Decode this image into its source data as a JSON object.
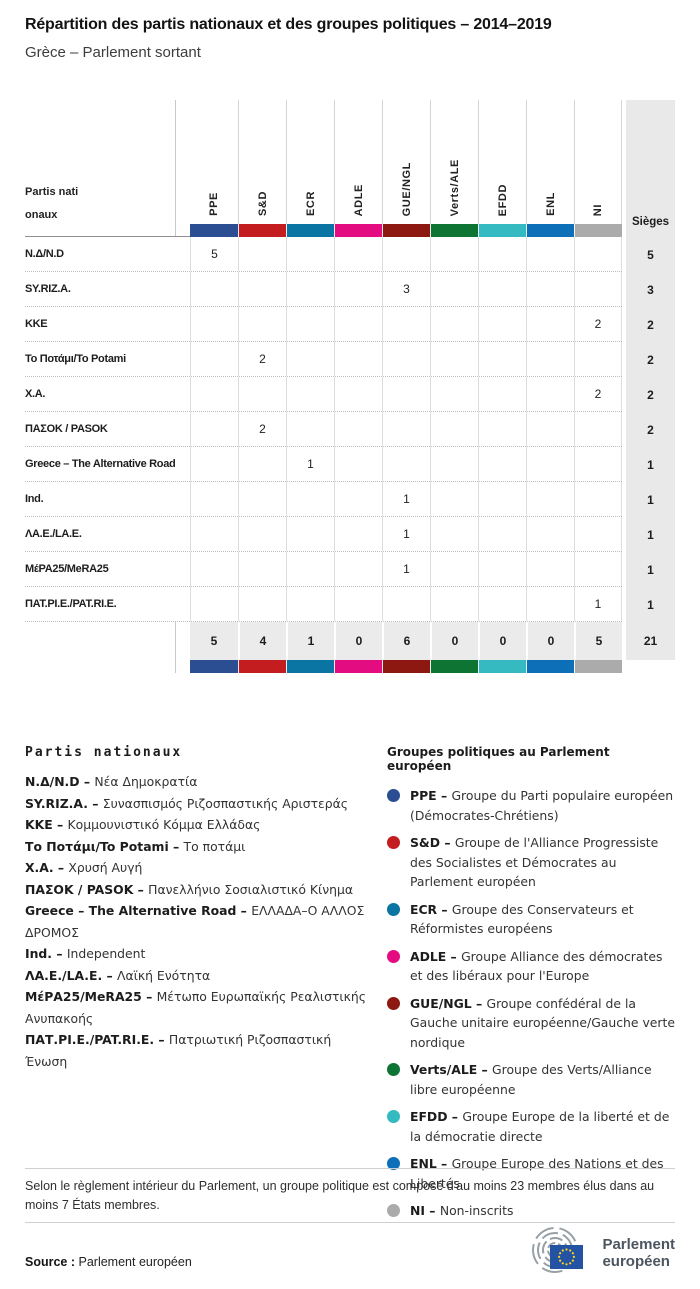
{
  "title": "Répartition des partis nationaux et des groupes politiques – 2014–2019",
  "subtitle": "Grèce – Parlement sortant",
  "chart_data": {
    "type": "table",
    "title": "Répartition des partis nationaux et des groupes politiques – 2014–2019",
    "subtitle": "Grèce – Parlement sortant",
    "corner_header": "Partis nationaux",
    "seats_header": "Sièges",
    "group_columns": [
      {
        "label": "PPE",
        "color": "#2b4d91"
      },
      {
        "label": "S&D",
        "color": "#c31d20"
      },
      {
        "label": "ECR",
        "color": "#0a74a2"
      },
      {
        "label": "ADLE",
        "color": "#e30c80"
      },
      {
        "label": "GUE/NGL",
        "color": "#8d1812"
      },
      {
        "label": "Verts/ALE",
        "color": "#0e7433"
      },
      {
        "label": "EFDD",
        "color": "#35bac1"
      },
      {
        "label": "ENL",
        "color": "#0c6fb7"
      },
      {
        "label": "NI",
        "color": "#ababab"
      }
    ],
    "rows": [
      {
        "party": "Ν.Δ/N.D",
        "values": [
          "5",
          "",
          "",
          "",
          "",
          "",
          "",
          "",
          ""
        ],
        "seats": "5"
      },
      {
        "party": "SY.RIZ.A.",
        "values": [
          "",
          "",
          "",
          "",
          "3",
          "",
          "",
          "",
          ""
        ],
        "seats": "3"
      },
      {
        "party": "KKE",
        "values": [
          "",
          "",
          "",
          "",
          "",
          "",
          "",
          "",
          "2"
        ],
        "seats": "2"
      },
      {
        "party": "Το Ποτάμι/To Potami",
        "values": [
          "",
          "2",
          "",
          "",
          "",
          "",
          "",
          "",
          ""
        ],
        "seats": "2"
      },
      {
        "party": "Χ.Α.",
        "values": [
          "",
          "",
          "",
          "",
          "",
          "",
          "",
          "",
          "2"
        ],
        "seats": "2"
      },
      {
        "party": "ΠΑΣΟΚ / PASOK",
        "values": [
          "",
          "2",
          "",
          "",
          "",
          "",
          "",
          "",
          ""
        ],
        "seats": "2"
      },
      {
        "party": "Greece – The Alternative Road",
        "values": [
          "",
          "",
          "1",
          "",
          "",
          "",
          "",
          "",
          ""
        ],
        "seats": "1"
      },
      {
        "party": "Ind.",
        "values": [
          "",
          "",
          "",
          "",
          "1",
          "",
          "",
          "",
          ""
        ],
        "seats": "1"
      },
      {
        "party": "ΛΑ.Ε./LA.E.",
        "values": [
          "",
          "",
          "",
          "",
          "1",
          "",
          "",
          "",
          ""
        ],
        "seats": "1"
      },
      {
        "party": "ΜέΡΑ25/MeRA25",
        "values": [
          "",
          "",
          "",
          "",
          "1",
          "",
          "",
          "",
          ""
        ],
        "seats": "1"
      },
      {
        "party": "ΠΑΤ.ΡΙ.Ε./PAT.RI.E.",
        "values": [
          "",
          "",
          "",
          "",
          "",
          "",
          "",
          "",
          "1"
        ],
        "seats": "1"
      }
    ],
    "totals": {
      "values": [
        "5",
        "4",
        "1",
        "0",
        "6",
        "0",
        "0",
        "0",
        "5"
      ],
      "seats": "21"
    }
  },
  "party_legend": {
    "heading": "Partis nationaux",
    "items": [
      {
        "abbr": "Ν.Δ/N.D –",
        "name": "Νέα Δημοκρατία"
      },
      {
        "abbr": "SY.RIZ.A. –",
        "name": "Συνασπισμός Ριζοσπαστικής Αριστεράς"
      },
      {
        "abbr": "KKE –",
        "name": "Κομμουνιστικό Κόμμα Ελλάδας"
      },
      {
        "abbr": "Το Ποτάμι/To Potami –",
        "name": "Το ποτάμι"
      },
      {
        "abbr": "Χ.Α. –",
        "name": "Χρυσή Αυγή"
      },
      {
        "abbr": "ΠΑΣΟΚ / PASOK –",
        "name": "Πανελλήνιο Σοσιαλιστικό Κίνημα"
      },
      {
        "abbr": "Greece – The Alternative Road –",
        "name": "ΕΛΛΑΔΑ–Ο ΑΛΛΟΣ ΔΡΟΜΟΣ"
      },
      {
        "abbr": "Ind. –",
        "name": "Independent"
      },
      {
        "abbr": "ΛΑ.Ε./LA.E. –",
        "name": "Λαϊκή Ενότητα"
      },
      {
        "abbr": "ΜέΡΑ25/MeRA25 –",
        "name": "Μέτωπο Ευρωπαϊκής Ρεαλιστικής Ανυπακοής"
      },
      {
        "abbr": "ΠΑΤ.ΡΙ.Ε./PAT.RI.E. –",
        "name": "Πατριωτική Ριζοσπαστική Ένωση"
      }
    ]
  },
  "group_legend": {
    "heading": "Groupes politiques au Parlement européen",
    "items": [
      {
        "abbr": "PPE –",
        "name": "Groupe du Parti populaire européen (Démocrates-Chrétiens)",
        "color": "#2b4d91"
      },
      {
        "abbr": "S&D –",
        "name": "Groupe de l'Alliance Progressiste des Socialistes et Démocrates au Parlement européen",
        "color": "#c31d20"
      },
      {
        "abbr": "ECR –",
        "name": "Groupe des Conservateurs et Réformistes européens",
        "color": "#0a74a2"
      },
      {
        "abbr": "ADLE –",
        "name": "Groupe Alliance des démocrates et des libéraux pour l'Europe",
        "color": "#e30c80"
      },
      {
        "abbr": "GUE/NGL –",
        "name": "Groupe confédéral de la Gauche unitaire européenne/Gauche verte nordique",
        "color": "#8d1812"
      },
      {
        "abbr": "Verts/ALE –",
        "name": "Groupe des Verts/Alliance libre européenne",
        "color": "#0e7433"
      },
      {
        "abbr": "EFDD –",
        "name": "Groupe Europe de la liberté et de la démocratie directe",
        "color": "#35bac1"
      },
      {
        "abbr": "ENL –",
        "name": "Groupe Europe des Nations et des Libertés",
        "color": "#0c6fb7"
      },
      {
        "abbr": "NI –",
        "name": "Non-inscrits",
        "color": "#ababab"
      }
    ]
  },
  "footer": {
    "note": "Selon le règlement intérieur du Parlement, un groupe politique est composé d'au moins 23 membres élus dans au moins 7 États membres.",
    "source_label": "Source :",
    "source_value": "Parlement européen",
    "logo_line1": "Parlement",
    "logo_line2": "européen"
  }
}
